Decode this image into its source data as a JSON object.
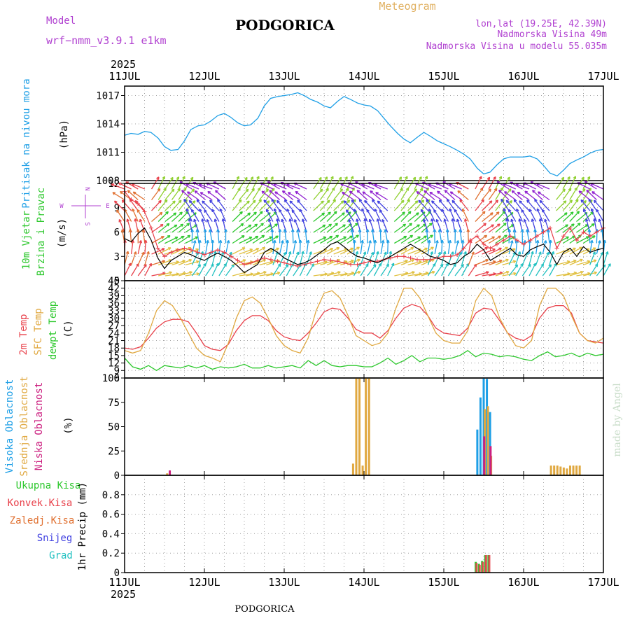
{
  "header": {
    "model_label": "Model",
    "model_name": "wrf−nmm_v3.9.1  e1km",
    "title": "PODGORICA",
    "meteogram": "Meteogram",
    "lonlat": "lon,lat (19.25E, 42.39N)",
    "elevation": "Nadmorska Visina 49m",
    "model_elevation": "Nadmorska Visina u modelu 55.035m",
    "year_top": "2025",
    "year_bottom": "2025",
    "footer_city": "PODGORICA",
    "credit": "made by Angel"
  },
  "colors": {
    "pressure": "#1e9fe6",
    "t2m": "#e8404a",
    "tsfc": "#e0a840",
    "dewpt": "#2ec82e",
    "wind_speed": "#000000",
    "gust": "#e8404a",
    "high_cloud": "#1e9fe6",
    "mid_cloud": "#e0a840",
    "low_cloud": "#cc2080",
    "total_precip": "#2ec82e",
    "convective_precip": "#e8404a",
    "frozen_precip": "#e07030",
    "snow": "#4040e0",
    "hail": "#20c0c0",
    "title_purple": "#b040d0"
  },
  "x_axis": {
    "ticks": [
      "11JUL",
      "12JUL",
      "13JUL",
      "14JUL",
      "15JUL",
      "16JUL",
      "17JUL"
    ]
  },
  "chart_data": [
    {
      "type": "line",
      "panel": "pressure",
      "ylabel": [
        "Pritisak na nivou mora",
        "(hPa)"
      ],
      "ylim": [
        1008,
        1018
      ],
      "yticks": [
        1008,
        1011,
        1014,
        1017
      ],
      "grid": true,
      "series": [
        {
          "name": "Pritisak na nivou mora",
          "x_days": [
            0,
            0.08,
            0.17,
            0.25,
            0.33,
            0.42,
            0.5,
            0.58,
            0.67,
            0.75,
            0.83,
            0.92,
            1.0,
            1.08,
            1.17,
            1.25,
            1.33,
            1.42,
            1.5,
            1.58,
            1.67,
            1.75,
            1.83,
            1.92,
            2.0,
            2.08,
            2.17,
            2.25,
            2.33,
            2.42,
            2.5,
            2.58,
            2.67,
            2.75,
            2.83,
            2.92,
            3.0,
            3.08,
            3.17,
            3.25,
            3.33,
            3.42,
            3.5,
            3.58,
            3.67,
            3.75,
            3.83,
            3.92,
            4.0,
            4.08,
            4.17,
            4.25,
            4.33,
            4.42,
            4.5,
            4.58,
            4.67,
            4.75,
            4.83,
            4.92,
            5.0,
            5.08,
            5.17,
            5.25,
            5.33,
            5.42,
            5.5,
            5.58,
            5.67,
            5.75,
            5.83,
            5.92,
            6.0
          ],
          "values": [
            1012.8,
            1013.0,
            1012.9,
            1013.2,
            1013.1,
            1012.5,
            1011.6,
            1011.2,
            1011.3,
            1012.2,
            1013.4,
            1013.8,
            1013.9,
            1014.3,
            1014.9,
            1015.1,
            1014.7,
            1014.1,
            1013.8,
            1013.9,
            1014.6,
            1015.9,
            1016.7,
            1016.9,
            1017.0,
            1017.1,
            1017.3,
            1017.0,
            1016.6,
            1016.3,
            1015.9,
            1015.7,
            1016.4,
            1016.9,
            1016.6,
            1016.2,
            1016.0,
            1015.9,
            1015.4,
            1014.6,
            1013.8,
            1013.0,
            1012.4,
            1012.0,
            1012.6,
            1013.1,
            1012.7,
            1012.2,
            1011.9,
            1011.6,
            1011.2,
            1010.8,
            1010.3,
            1009.3,
            1008.7,
            1008.9,
            1009.7,
            1010.3,
            1010.5,
            1010.5,
            1010.5,
            1010.6,
            1010.3,
            1009.6,
            1008.8,
            1008.5,
            1009.1,
            1009.8,
            1010.2,
            1010.5,
            1010.9,
            1011.2,
            1011.3
          ]
        }
      ]
    },
    {
      "type": "line",
      "panel": "wind",
      "ylabel": [
        "10m Vjetar",
        "Brzina i Pravac",
        "(m/s)"
      ],
      "direction_legend": [
        "N",
        "E",
        "W",
        "S"
      ],
      "ylim": [
        0,
        12
      ],
      "yticks": [
        0,
        3,
        6,
        9,
        12
      ],
      "grid": true,
      "series": [
        {
          "name": "10m wind speed",
          "values": [
            5.2,
            4.8,
            5.8,
            6.5,
            5.0,
            2.8,
            1.5,
            2.5,
            3.0,
            3.5,
            3.2,
            2.8,
            2.5,
            3.0,
            3.4,
            3.0,
            2.5,
            1.8,
            1.0,
            1.5,
            2.0,
            3.5,
            4.0,
            3.5,
            2.8,
            2.4,
            2.0,
            2.2,
            2.6,
            3.2,
            3.8,
            4.5,
            4.8,
            4.2,
            3.5,
            3.0,
            2.8,
            2.5,
            2.2,
            2.6,
            3.0,
            3.5,
            4.0,
            4.5,
            4.0,
            3.5,
            3.0,
            2.8,
            2.5,
            2.0,
            2.2,
            3.0,
            3.5,
            4.5,
            3.8,
            2.5,
            3.0,
            3.5,
            4.0,
            3.2,
            3.0,
            3.8,
            4.2,
            4.5,
            3.5,
            2.0,
            3.5,
            4.0,
            3.0,
            4.2,
            3.5,
            3.8,
            4.0
          ]
        },
        {
          "name": "10m wind gust",
          "values": [
            11.0,
            10.0,
            9.5,
            8.5,
            6.5,
            4.0,
            3.0,
            3.5,
            3.8,
            4.0,
            3.8,
            3.5,
            3.2,
            3.5,
            3.8,
            3.5,
            3.0,
            2.5,
            2.0,
            2.2,
            2.5,
            2.8,
            2.6,
            2.4,
            2.2,
            2.0,
            1.8,
            2.0,
            2.2,
            2.4,
            2.6,
            2.5,
            2.4,
            2.2,
            2.0,
            2.0,
            2.2,
            2.4,
            2.4,
            2.6,
            2.8,
            3.0,
            3.0,
            2.8,
            2.6,
            2.6,
            2.6,
            2.8,
            3.0,
            3.0,
            3.2,
            4.0,
            5.0,
            5.5,
            4.5,
            4.0,
            4.5,
            5.0,
            5.5,
            5.0,
            4.5,
            5.0,
            5.5,
            6.0,
            6.5,
            4.0,
            5.5,
            6.5,
            5.0,
            6.0,
            5.5,
            6.0,
            6.5
          ]
        }
      ]
    },
    {
      "type": "line",
      "panel": "temperature",
      "ylabel": [
        "2m Temp",
        "SFC Temp",
        "dewpt Temp",
        "(C)"
      ],
      "ylim": [
        6,
        45
      ],
      "yticks": [
        6,
        9,
        12,
        15,
        18,
        21,
        24,
        27,
        30,
        33,
        36,
        39,
        42,
        45
      ],
      "grid": true,
      "series": [
        {
          "name": "2m Temp",
          "values": [
            18,
            17.5,
            18.5,
            22,
            26,
            28.5,
            29.5,
            29.5,
            28.5,
            24,
            19,
            17.5,
            17,
            19.5,
            25,
            29,
            31,
            31,
            29,
            25,
            22.5,
            21.5,
            21,
            24,
            28,
            32.5,
            34,
            33.5,
            30,
            25.5,
            24,
            24,
            22,
            25,
            30,
            34,
            35.5,
            34.5,
            31,
            26,
            24,
            23.5,
            23,
            26,
            32,
            34,
            33.5,
            29,
            24,
            22,
            21,
            23,
            30,
            34,
            35,
            35,
            32,
            24,
            21,
            20.5,
            20
          ]
        },
        {
          "name": "SFC Temp",
          "values": [
            17,
            16,
            17,
            24,
            33,
            37,
            35,
            30,
            24,
            18,
            15,
            14,
            12.5,
            20,
            30,
            37,
            38.5,
            36,
            30,
            23,
            19,
            17,
            16,
            22,
            33,
            40,
            41,
            38,
            31,
            23,
            21,
            19,
            20,
            24,
            34,
            42,
            42,
            38,
            31,
            24,
            21,
            20,
            20,
            25,
            37,
            42,
            39,
            30,
            24,
            19,
            18,
            21,
            35,
            42,
            42,
            39,
            31,
            24,
            21,
            20,
            22
          ]
        },
        {
          "name": "dewpt Temp",
          "values": [
            14,
            10.5,
            9.5,
            11,
            9,
            11,
            10.5,
            10,
            11,
            10,
            11,
            9.5,
            10.5,
            10,
            10.5,
            11.5,
            10,
            10,
            11,
            10,
            10.5,
            11,
            10,
            13,
            11,
            13,
            11,
            10.5,
            11,
            11,
            10.5,
            10.5,
            12,
            14,
            11.5,
            13,
            15,
            12.5,
            14,
            14,
            13.5,
            14,
            15,
            17,
            14.5,
            16,
            15.5,
            14.5,
            15,
            14.5,
            13.5,
            13,
            15,
            16.5,
            14.5,
            15,
            16,
            14.5,
            16,
            15,
            15.5
          ]
        }
      ]
    },
    {
      "type": "bar",
      "panel": "cloud",
      "ylabel": [
        "Visoka Oblacnost",
        "Srednja Oblacnost",
        "Niska Oblacnost",
        "(%)"
      ],
      "ylim": [
        0,
        100
      ],
      "yticks": [
        0,
        25,
        50,
        75,
        100
      ],
      "grid": false,
      "series": [
        {
          "name": "Visoka Oblacnost",
          "x_days": [
            4.42,
            4.46,
            4.5,
            4.54,
            4.58
          ],
          "values": [
            47,
            80,
            100,
            99,
            65
          ]
        },
        {
          "name": "Srednja Oblacnost",
          "x_days": [
            0.52,
            2.85,
            2.89,
            2.93,
            2.97,
            3.01,
            3.05,
            4.5,
            4.54,
            4.58,
            5.33,
            5.37,
            5.41,
            5.45,
            5.49,
            5.53,
            5.57,
            5.61,
            5.65,
            5.69
          ],
          "values": [
            2,
            12,
            100,
            100,
            10,
            100,
            100,
            68,
            71,
            20,
            10,
            10,
            10,
            9,
            8,
            7,
            10,
            10,
            10,
            10
          ]
        },
        {
          "name": "Niska Oblacnost",
          "x_days": [
            0.54,
            4.48,
            4.56
          ],
          "values": [
            5,
            40,
            30
          ]
        }
      ]
    },
    {
      "type": "bar",
      "panel": "precip",
      "ylabel": [
        "Ukupna Kisa",
        "Konvek.Kisa",
        "Zaledj.Kisa",
        "Snijeg",
        "Grad",
        "1hr Precip (mm)"
      ],
      "ylim": [
        0,
        1
      ],
      "yticks": [
        0,
        0.2,
        0.4,
        0.6,
        0.8
      ],
      "grid": true,
      "series": [
        {
          "name": "Ukupna Kisa",
          "x_days": [
            4.4,
            4.44,
            4.48,
            4.52,
            4.56
          ],
          "values": [
            0.11,
            0.09,
            0.12,
            0.18,
            0.18
          ]
        },
        {
          "name": "Konvek.Kisa",
          "x_days": [
            4.41,
            4.45,
            4.49,
            4.53,
            4.57
          ],
          "values": [
            0.1,
            0.08,
            0.11,
            0.18,
            0.18
          ]
        }
      ]
    }
  ]
}
